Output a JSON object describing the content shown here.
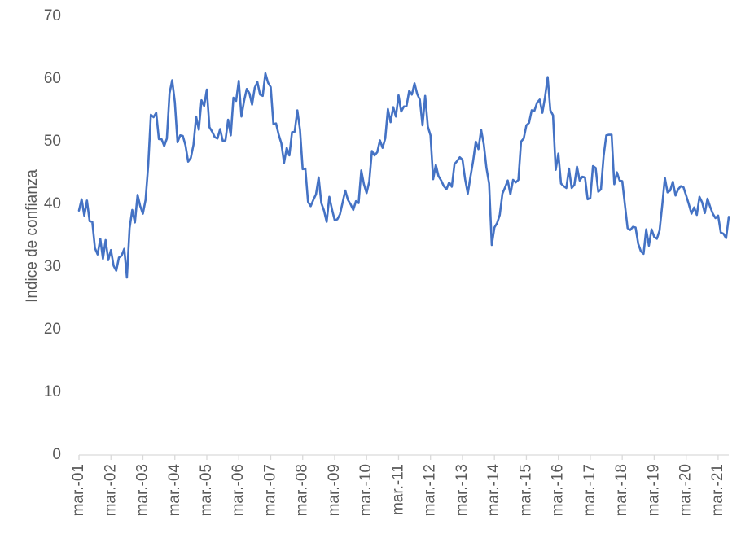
{
  "chart_data": {
    "type": "line",
    "ylabel": "Indice de confianza",
    "xlabel": "",
    "ylim": [
      0,
      70
    ],
    "yticks": [
      0,
      10,
      20,
      30,
      40,
      50,
      60,
      70
    ],
    "x_tick_labels": [
      "mar.-01",
      "mar.-02",
      "mar.-03",
      "mar.-04",
      "mar.-05",
      "mar.-06",
      "mar.-07",
      "mar.-08",
      "mar.-09",
      "mar.-10",
      "mar.-11",
      "mar.-12",
      "mar.-13",
      "mar.-14",
      "mar.-15",
      "mar.-16",
      "mar.-17",
      "mar.-18",
      "mar.-19",
      "mar.-20",
      "mar.-21"
    ],
    "grid": false,
    "legend": "none",
    "line_color": "#4472C4",
    "series": [
      {
        "values": [
          39,
          40.8,
          38.2,
          40.6,
          37.3,
          37.2,
          33,
          32,
          34.5,
          31.3,
          34.3,
          31.1,
          32.7,
          30.2,
          29.4,
          31.5,
          31.8,
          32.9,
          28.3,
          36.2,
          39.1,
          37.1,
          41.5,
          39.7,
          38.5,
          40.7,
          46.2,
          54.3,
          53.9,
          54.6,
          50.4,
          50.4,
          49.3,
          50.5,
          57.7,
          59.8,
          56.3,
          49.9,
          51,
          50.9,
          49.4,
          46.8,
          47.4,
          49.5,
          54,
          51.9,
          56.6,
          55.7,
          58.3,
          52.3,
          51.6,
          50.7,
          50.5,
          52,
          50.1,
          50.2,
          53.5,
          51,
          57,
          56.5,
          59.7,
          54,
          56.5,
          58.4,
          57.7,
          55.9,
          58.6,
          59.5,
          57.5,
          57.3,
          60.9,
          59.4,
          58.7,
          52.8,
          52.9,
          51.1,
          49.7,
          46.6,
          49,
          47.8,
          51.5,
          51.6,
          55,
          51.9,
          45.6,
          45.7,
          40.4,
          39.7,
          40.7,
          41.6,
          44.3,
          40.2,
          39,
          37.2,
          41.2,
          39.2,
          37.5,
          37.6,
          38.4,
          40.3,
          42.2,
          40.7,
          40,
          39.1,
          40.5,
          40.2,
          45.4,
          43.2,
          41.8,
          43.6,
          48.5,
          47.8,
          48.3,
          50.2,
          49,
          50.5,
          55.2,
          53.1,
          55.5,
          54,
          57.4,
          54.8,
          55.6,
          55.7,
          58.1,
          57.5,
          59.3,
          57.6,
          56.7,
          52.6,
          57.3,
          52.4,
          51,
          44,
          46.3,
          44.5,
          43.8,
          42.9,
          42.4,
          43.5,
          42.8,
          46.4,
          46.9,
          47.5,
          47.1,
          44,
          41.7,
          44.4,
          46.9,
          50,
          48.8,
          51.9,
          49.6,
          45.8,
          43.3,
          33.5,
          36.3,
          37,
          38.3,
          41.7,
          42.7,
          43.8,
          41.6,
          43.9,
          43.5,
          43.9,
          50,
          50.5,
          52.6,
          53,
          55,
          54.9,
          56.2,
          56.7,
          54.6,
          57.1,
          60.3,
          55,
          54.2,
          45.5,
          48.1,
          43.3,
          42.9,
          42.6,
          45.7,
          42.6,
          43.1,
          46,
          43.8,
          44.4,
          44.3,
          40.8,
          41,
          46.1,
          45.8,
          42,
          42.4,
          47.7,
          51,
          51.1,
          51.1,
          43.2,
          45.1,
          43.8,
          43.7,
          39.9,
          36.2,
          35.9,
          36.4,
          36.3,
          33.7,
          32.5,
          32.1,
          36,
          33.4,
          36,
          34.8,
          34.5,
          35.8,
          39.8,
          44.2,
          41.9,
          42.2,
          43.6,
          41.4,
          42.4,
          42.9,
          42.7,
          41.4,
          40,
          38.5,
          39.5,
          38.3,
          41.2,
          40.3,
          38.6,
          40.9,
          39.6,
          38.5,
          37.8,
          38.2,
          35.5,
          35.3,
          34.6,
          38
        ]
      }
    ]
  }
}
